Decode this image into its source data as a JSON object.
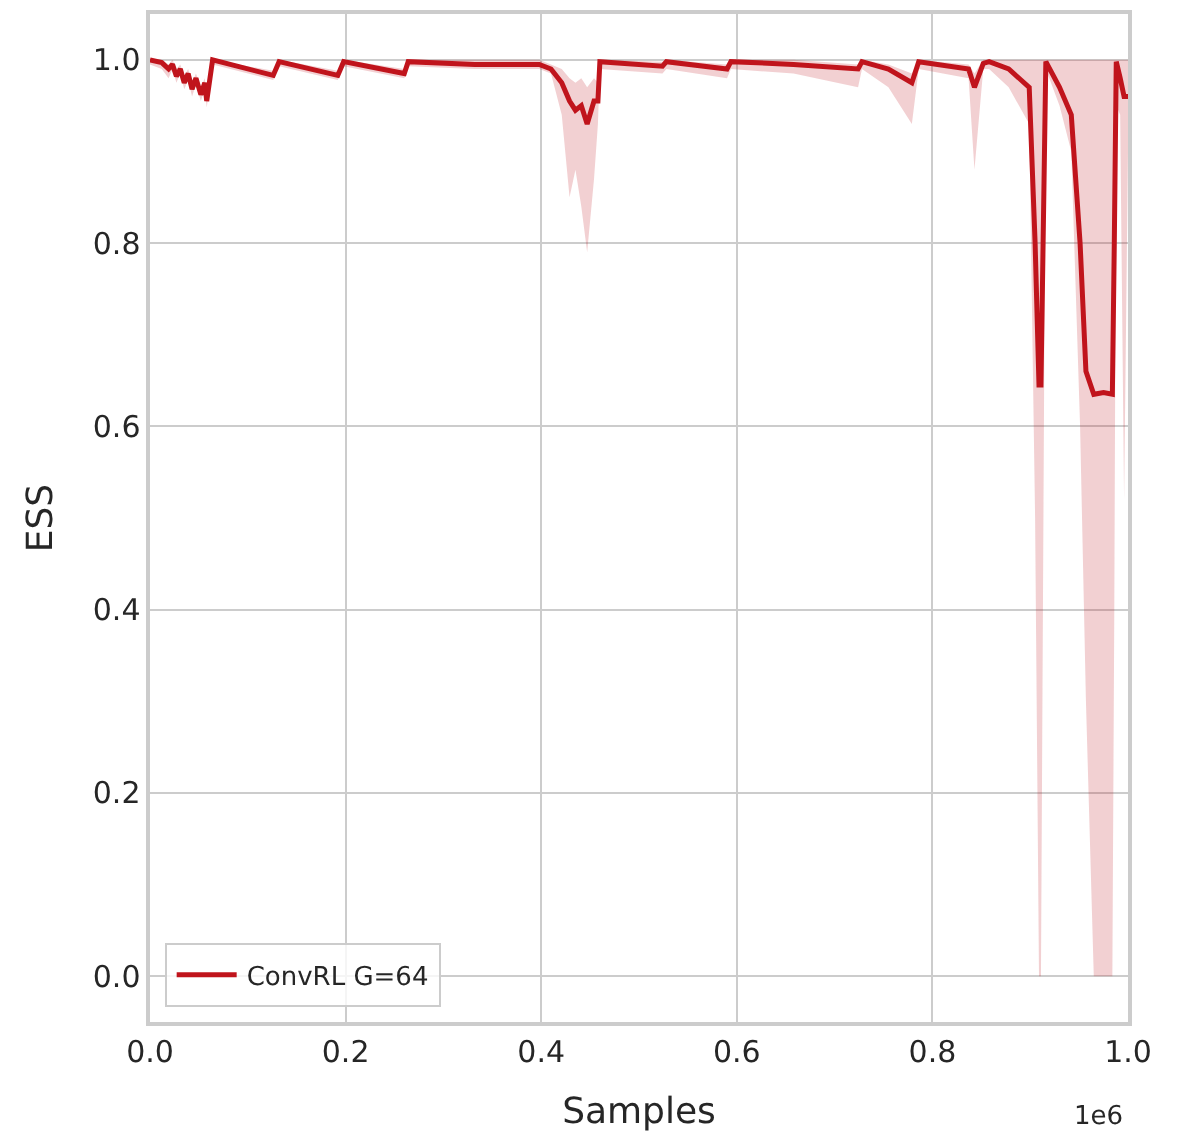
{
  "chart_data": {
    "type": "line",
    "xlabel": "Samples",
    "ylabel": "ESS",
    "x": [
      0,
      0.012,
      0.019,
      0.023,
      0.027,
      0.031,
      0.035,
      0.039,
      0.043,
      0.047,
      0.052,
      0.056,
      0.058,
      0.064,
      0.126,
      0.132,
      0.192,
      0.198,
      0.26,
      0.264,
      0.332,
      0.398,
      0.41,
      0.421,
      0.429,
      0.435,
      0.441,
      0.447,
      0.454,
      0.458,
      0.46,
      0.524,
      0.528,
      0.59,
      0.594,
      0.658,
      0.724,
      0.728,
      0.755,
      0.779,
      0.786,
      0.837,
      0.843,
      0.852,
      0.858,
      0.878,
      0.899,
      0.905,
      0.909,
      0.911,
      0.916,
      0.93,
      0.942,
      0.951,
      0.957,
      0.965,
      0.975,
      0.984,
      0.986,
      0.988,
      0.992,
      0.996,
      1.0
    ],
    "series": [
      {
        "name": "ConvRL G=64",
        "color": "#c0141c",
        "values": [
          1.0,
          0.997,
          0.99,
          0.995,
          0.982,
          0.99,
          0.975,
          0.985,
          0.968,
          0.98,
          0.962,
          0.975,
          0.955,
          1.0,
          0.983,
          0.998,
          0.983,
          0.998,
          0.985,
          0.998,
          0.995,
          0.995,
          0.99,
          0.975,
          0.955,
          0.945,
          0.95,
          0.93,
          0.955,
          0.955,
          0.998,
          0.993,
          0.998,
          0.99,
          0.998,
          0.995,
          0.99,
          0.998,
          0.99,
          0.975,
          0.998,
          0.99,
          0.97,
          0.996,
          0.998,
          0.99,
          0.97,
          0.8,
          0.645,
          0.645,
          0.998,
          0.97,
          0.94,
          0.8,
          0.66,
          0.635,
          0.637,
          0.635,
          0.8,
          0.998,
          0.98,
          0.96,
          0.96
        ],
        "lower": [
          0.995,
          0.99,
          0.98,
          0.99,
          0.975,
          0.985,
          0.968,
          0.978,
          0.96,
          0.973,
          0.955,
          0.968,
          0.948,
          0.995,
          0.978,
          0.993,
          0.978,
          0.993,
          0.98,
          0.993,
          0.99,
          0.99,
          0.985,
          0.94,
          0.85,
          0.88,
          0.84,
          0.79,
          0.87,
          0.93,
          0.99,
          0.985,
          0.99,
          0.98,
          0.99,
          0.985,
          0.97,
          0.99,
          0.97,
          0.93,
          0.99,
          0.98,
          0.88,
          0.99,
          0.99,
          0.97,
          0.93,
          0.5,
          0.0,
          0.0,
          0.99,
          0.95,
          0.9,
          0.6,
          0.3,
          0.0,
          0.0,
          0.0,
          0.4,
          0.95,
          0.94,
          0.52,
          0.9
        ],
        "upper": [
          1.0,
          1.0,
          0.995,
          1.0,
          0.99,
          0.995,
          0.982,
          0.99,
          0.975,
          0.985,
          0.97,
          0.98,
          0.962,
          1.0,
          0.988,
          1.0,
          0.988,
          1.0,
          0.99,
          1.0,
          1.0,
          1.0,
          0.995,
          0.99,
          0.98,
          0.975,
          0.98,
          0.97,
          0.98,
          0.975,
          1.0,
          0.998,
          1.0,
          0.995,
          1.0,
          1.0,
          0.995,
          1.0,
          0.995,
          0.985,
          1.0,
          0.995,
          0.985,
          1.0,
          1.0,
          1.0,
          1.0,
          1.0,
          1.0,
          1.0,
          1.0,
          1.0,
          1.0,
          1.0,
          1.0,
          1.0,
          1.0,
          1.0,
          1.0,
          1.0,
          1.0,
          1.0,
          1.0
        ]
      }
    ],
    "xlim": [
      0,
      1.0
    ],
    "xticks": [
      {
        "value": 0,
        "label": "0.0"
      },
      0.2,
      0.4,
      0.6,
      0.8,
      {
        "value": 1.0,
        "label": "1.0"
      }
    ],
    "ylim": [
      -0.05,
      1.05
    ],
    "yticks": [
      {
        "value": 0,
        "label": "0.0"
      },
      {
        "value": 0.2,
        "label": "0.2"
      },
      {
        "value": 0.4,
        "label": "0.4"
      },
      {
        "value": 0.6,
        "label": "0.6"
      },
      {
        "value": 0.8,
        "label": "0.8"
      },
      {
        "value": 1.0,
        "label": "1.0"
      }
    ],
    "annotations": [
      "1e6"
    ],
    "grid": true,
    "legend": "bottom left",
    "line_style": "solid",
    "marker": "none"
  }
}
